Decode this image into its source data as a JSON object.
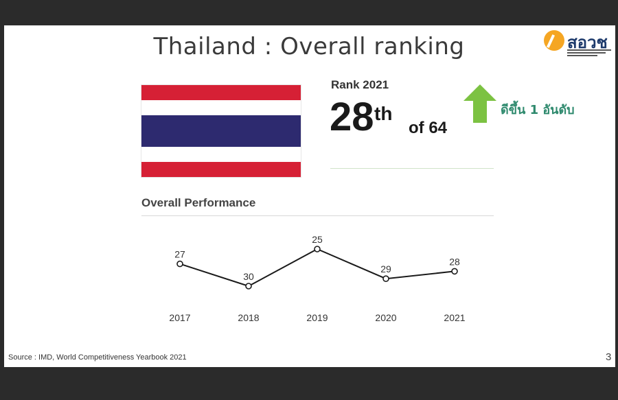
{
  "slide": {
    "title": "Thailand : Overall ranking",
    "logo_text": "สอวช",
    "rank_label": "Rank 2021",
    "rank_value": "28",
    "rank_suffix": "th",
    "rank_of": "of 64",
    "change_text": "ดีขึ้น 1 อันดับ",
    "performance_title": "Overall Performance",
    "source": "Source : IMD, World Competitiveness Yearbook 2021",
    "page_number": "3"
  },
  "icons": {
    "logo": "sorwor-logo-icon",
    "flag": "thailand-flag-icon",
    "change": "up-arrow-icon"
  },
  "colors": {
    "flag_red": "#d62035",
    "flag_blue": "#2d2a6f",
    "arrow_green": "#7cc242",
    "change_text": "#2f8a6e",
    "logo_orange": "#f5a623",
    "logo_navy": "#1d3a6b"
  },
  "chart_data": {
    "type": "line",
    "x": [
      "2017",
      "2018",
      "2019",
      "2020",
      "2021"
    ],
    "series": [
      {
        "values": [
          27,
          30,
          25,
          29,
          28
        ]
      }
    ],
    "y_inverted": true,
    "grid": false,
    "legend": "none"
  }
}
